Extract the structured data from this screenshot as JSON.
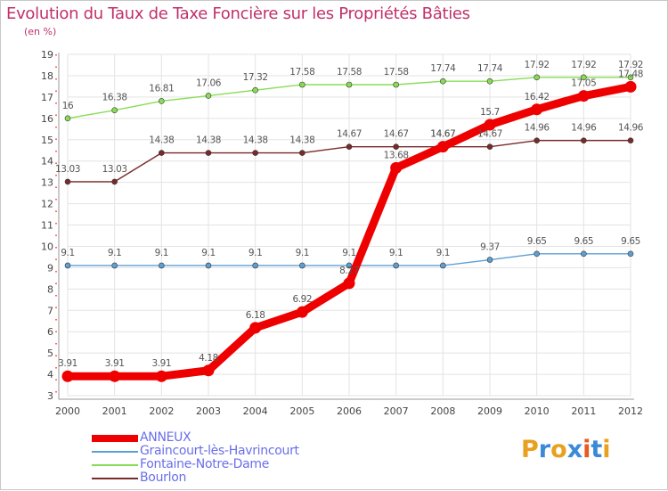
{
  "chart_data": {
    "type": "line",
    "title": "Evolution du Taux de Taxe Foncière sur les Propriétés Bâties",
    "subtitle": "(en %)",
    "x": [
      "2000",
      "2001",
      "2002",
      "2003",
      "2004",
      "2005",
      "2006",
      "2007",
      "2008",
      "2009",
      "2010",
      "2011",
      "2012"
    ],
    "ylim": [
      3,
      19
    ],
    "yticks": [
      "3",
      "4",
      "5",
      "6",
      "7",
      "8",
      "9",
      "10",
      "11",
      "12",
      "13",
      "14",
      "15",
      "16",
      "17",
      "18",
      "19"
    ],
    "grid": true,
    "legend_position": "bottom-left",
    "series": [
      {
        "name": "ANNEUX",
        "color": "#ee0000",
        "values": [
          3.91,
          3.91,
          3.91,
          4.18,
          6.18,
          6.92,
          8.27,
          13.68,
          14.67,
          15.7,
          16.42,
          17.05,
          17.48
        ],
        "labels": [
          "3.91",
          "3.91",
          "3.91",
          "4.18",
          "6.18",
          "6.92",
          "8.27",
          "13.68",
          "14.67",
          "15.7",
          "16.42",
          "17.05",
          "17.48"
        ]
      },
      {
        "name": "Graincourt-lès-Havrincourt",
        "color": "#5e9fd3",
        "values": [
          9.1,
          9.1,
          9.1,
          9.1,
          9.1,
          9.1,
          9.1,
          9.1,
          9.1,
          9.37,
          9.65,
          9.65,
          9.65
        ],
        "labels": [
          "9.1",
          "9.1",
          "9.1",
          "9.1",
          "9.1",
          "9.1",
          "9.1",
          "9.1",
          "9.1",
          "9.37",
          "9.65",
          "9.65",
          "9.65"
        ]
      },
      {
        "name": "Fontaine-Notre-Dame",
        "color": "#88dd55",
        "values": [
          16,
          16.38,
          16.81,
          17.06,
          17.32,
          17.58,
          17.58,
          17.58,
          17.74,
          17.74,
          17.92,
          17.92,
          17.92
        ],
        "labels": [
          "16",
          "16.38",
          "16.81",
          "17.06",
          "17.32",
          "17.58",
          "17.58",
          "17.58",
          "17.74",
          "17.74",
          "17.92",
          "17.92",
          "17.92"
        ]
      },
      {
        "name": "Bourlon",
        "color": "#7a2a2a",
        "values": [
          13.03,
          13.03,
          14.38,
          14.38,
          14.38,
          14.38,
          14.67,
          14.67,
          14.67,
          14.67,
          14.96,
          14.96,
          14.96
        ],
        "labels": [
          "13.03",
          "13.03",
          "14.38",
          "14.38",
          "14.38",
          "14.38",
          "14.67",
          "14.67",
          "14.67",
          "14.67",
          "14.96",
          "14.96",
          "14.96"
        ]
      }
    ]
  },
  "brand": {
    "logo_text": "Proxiti",
    "colors": [
      "#e8a020",
      "#3a8ad8",
      "#e8a020",
      "#3a8ad8",
      "#e85a20",
      "#3a8ad8",
      "#e8a020"
    ]
  }
}
